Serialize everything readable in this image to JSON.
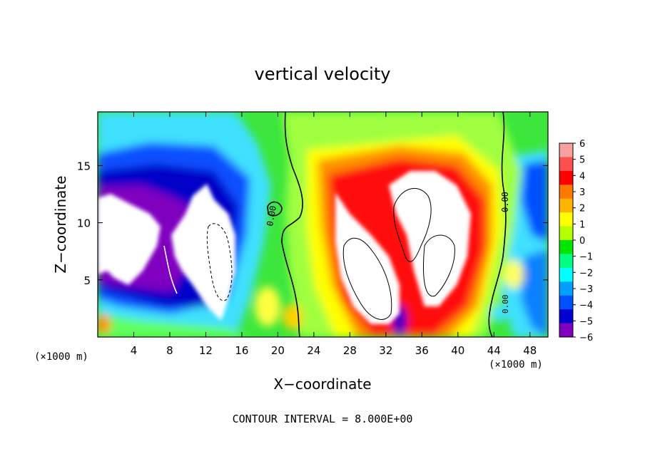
{
  "chart_data": {
    "type": "heatmap",
    "title": "vertical velocity",
    "xlabel": "X−coordinate",
    "ylabel": "Z−coordinate",
    "x_unit_label": "(×1000 m)",
    "x_unit_label_bottom": "(×1000 m)",
    "footer": "CONTOUR INTERVAL = 8.000E+00",
    "xlim": [
      0,
      50
    ],
    "ylim": [
      0,
      19.7
    ],
    "xticks": [
      4,
      8,
      12,
      16,
      20,
      24,
      28,
      32,
      36,
      40,
      44,
      48
    ],
    "xtick_labels": [
      "4",
      "8",
      "12",
      "16",
      "20",
      "24",
      "28",
      "32",
      "36",
      "40",
      "44",
      "48"
    ],
    "yticks": [
      5,
      10,
      15
    ],
    "ytick_labels": [
      "5",
      "10",
      "15"
    ],
    "colorbar": {
      "range": [
        -6,
        6
      ],
      "ticks": [
        6,
        5,
        4,
        3,
        2,
        1,
        0,
        -1,
        -2,
        -3,
        -4,
        -5,
        -6
      ],
      "tick_labels": [
        "6",
        "5",
        "4",
        "3",
        "2",
        "1",
        "0",
        "−1",
        "−2",
        "−3",
        "−4",
        "−5",
        "−6"
      ],
      "colors": [
        "#f7a0a0",
        "#ff5050",
        "#ff0000",
        "#ff7800",
        "#ffb400",
        "#ffff00",
        "#b4ff00",
        "#00e600",
        "#00ff80",
        "#00ffff",
        "#00a0ff",
        "#0050ff",
        "#0000d0",
        "#8000c0"
      ]
    },
    "contour_labels": [
      "0.00",
      "0.00",
      "0.00"
    ],
    "grid": false
  }
}
